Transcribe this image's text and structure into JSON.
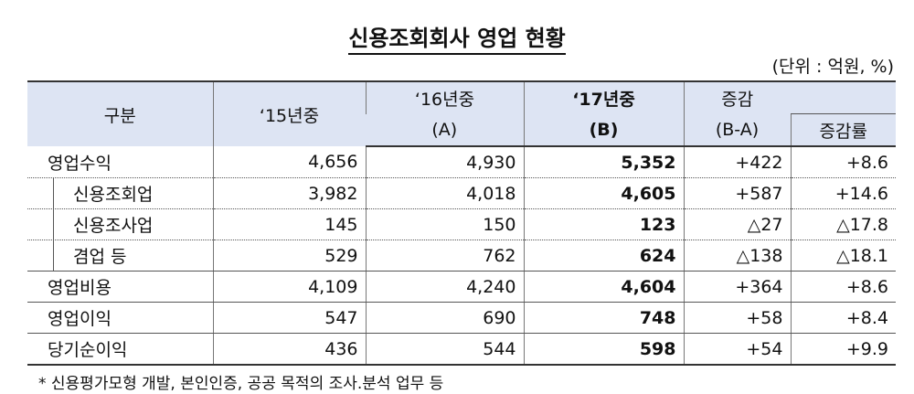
{
  "title": "신용조회회사 영업 현황",
  "unit": "(단위 : 억원, %)",
  "header": {
    "category": "구분",
    "y2015": "‘15년중",
    "y2016": "‘16년중",
    "y2016_sub": "(A)",
    "y2017": "‘17년중",
    "y2017_sub": "(B)",
    "change": "증감",
    "change_sub": "(B-A)",
    "rate": "증감률"
  },
  "rows": [
    [
      "영업수익",
      "4,656",
      "4,930",
      "5,352",
      "+422",
      "+8.6"
    ],
    [
      "신용조회업",
      "3,982",
      "4,018",
      "4,605",
      "+587",
      "+14.6"
    ],
    [
      "신용조사업",
      "145",
      "150",
      "123",
      "△27",
      "△17.8"
    ],
    [
      "겸업 등",
      "529",
      "762",
      "624",
      "△138",
      "△18.1"
    ],
    [
      "영업비용",
      "4,109",
      "4,240",
      "4,604",
      "+364",
      "+8.6"
    ],
    [
      "영업이익",
      "547",
      "690",
      "748",
      "+58",
      "+8.4"
    ],
    [
      "당기순이익",
      "436",
      "544",
      "598",
      "+54",
      "+9.9"
    ]
  ],
  "footnote": "* 신용평가모형 개발, 본인인증, 공공 목적의 조사.분석 업무 등"
}
